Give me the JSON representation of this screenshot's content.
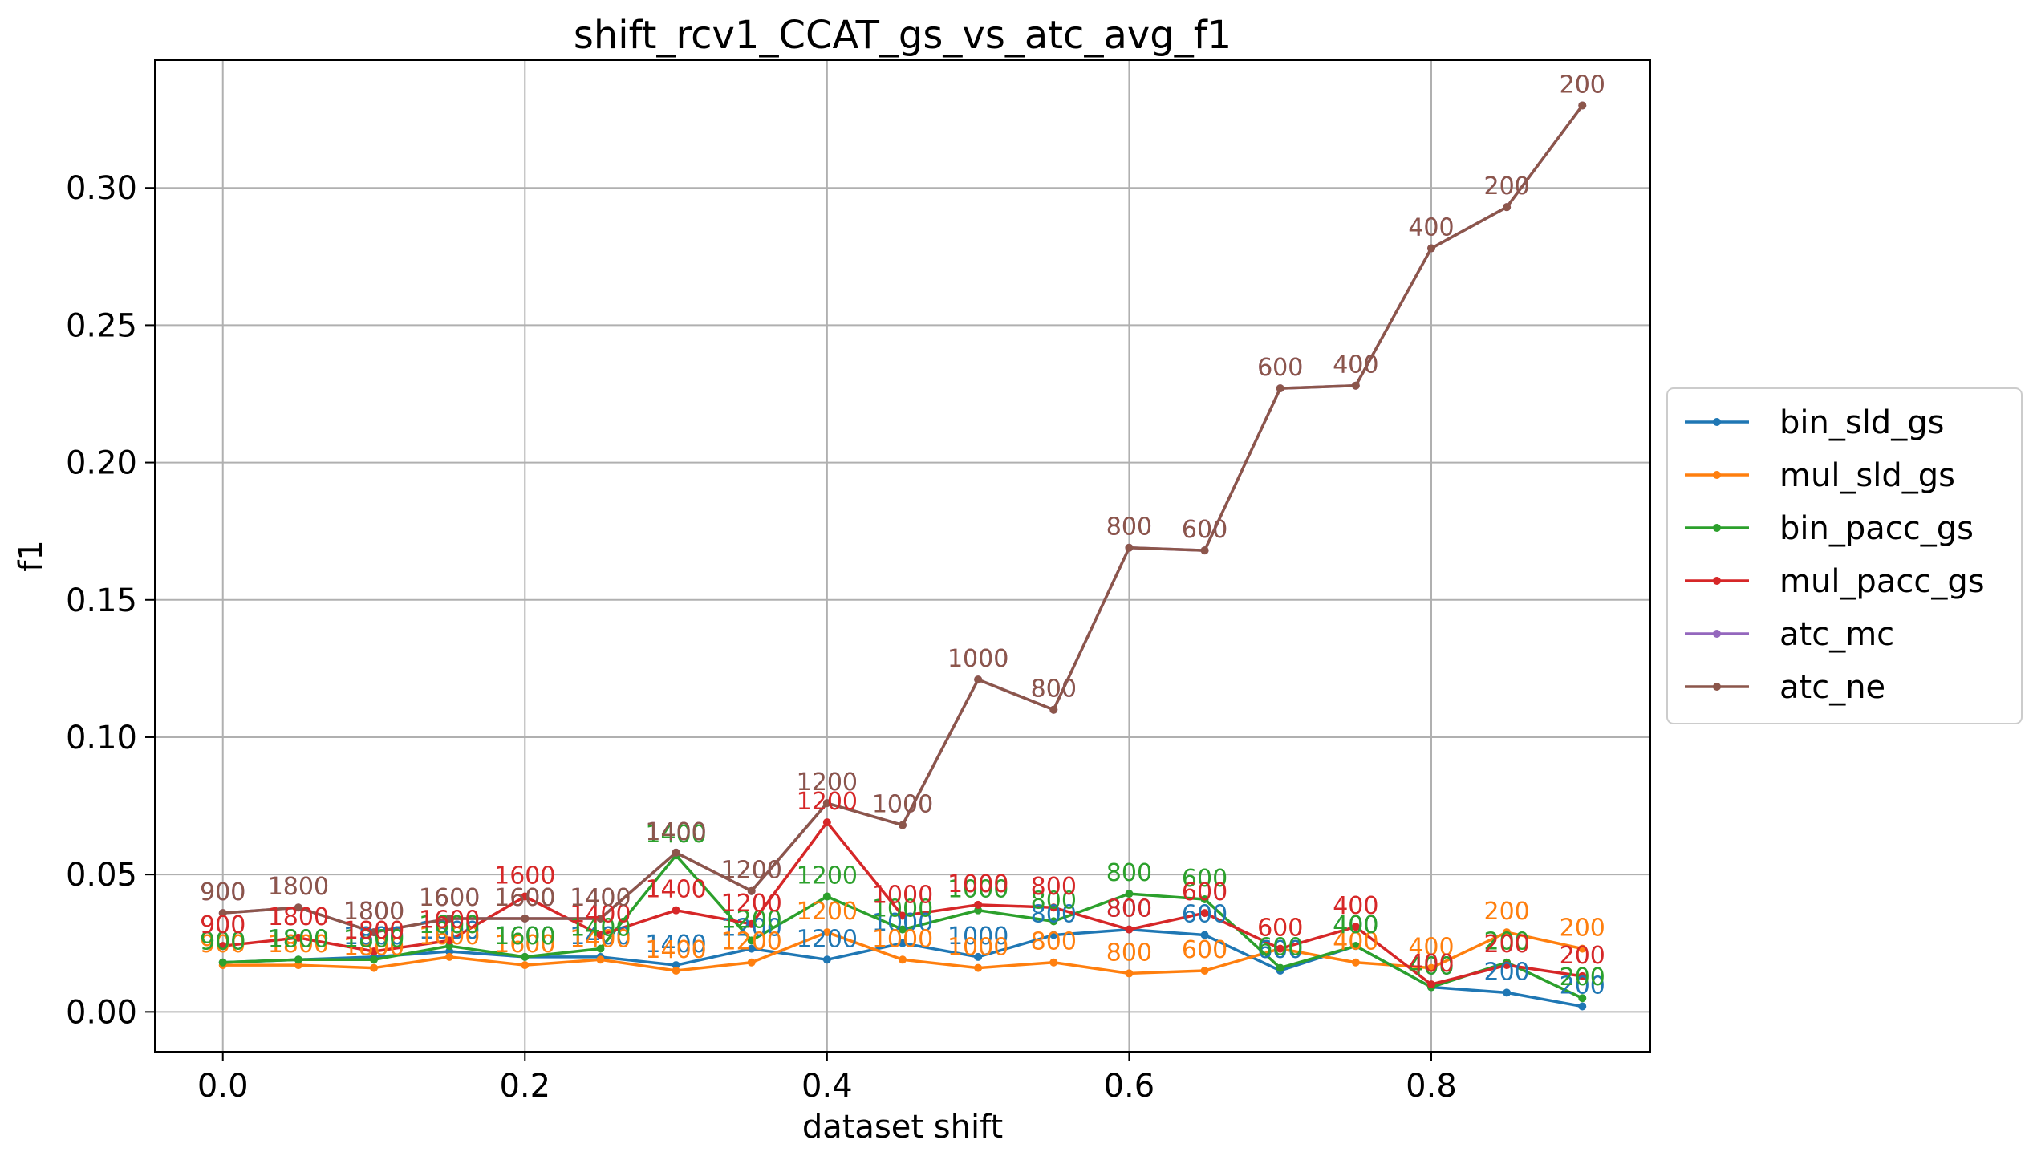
{
  "chart_data": {
    "type": "line",
    "title": "shift_rcv1_CCAT_gs_vs_atc_avg_f1",
    "xlabel": "dataset shift",
    "ylabel": "f1",
    "xlim": [
      -0.045,
      0.945
    ],
    "ylim": [
      -0.0145,
      0.3465
    ],
    "xticks": [
      0.0,
      0.2,
      0.4,
      0.6,
      0.8
    ],
    "xtick_labels": [
      "0.0",
      "0.2",
      "0.4",
      "0.6",
      "0.8"
    ],
    "yticks": [
      0.0,
      0.05,
      0.1,
      0.15,
      0.2,
      0.25,
      0.3
    ],
    "ytick_labels": [
      "0.00",
      "0.05",
      "0.10",
      "0.15",
      "0.20",
      "0.25",
      "0.30"
    ],
    "grid": true,
    "legend_position": "center-right-outside",
    "x": [
      0.0,
      0.05,
      0.1,
      0.15,
      0.2,
      0.25,
      0.3,
      0.35,
      0.4,
      0.45,
      0.5,
      0.55,
      0.6,
      0.65,
      0.7,
      0.75,
      0.8,
      0.85,
      0.9
    ],
    "point_labels": [
      "900",
      "1800",
      "1800",
      "1600",
      "1600",
      "1400",
      "1400",
      "1200",
      "1200",
      "1000",
      "1000",
      "800",
      "800",
      "600",
      "600",
      "400",
      "400",
      "200",
      "200"
    ],
    "series": [
      {
        "name": "bin_sld_gs",
        "color": "#1f77b4",
        "values": [
          0.018,
          0.019,
          0.02,
          0.022,
          0.02,
          0.02,
          0.017,
          0.023,
          0.019,
          0.025,
          0.02,
          0.028,
          0.03,
          0.028,
          0.015,
          0.024,
          0.009,
          0.007,
          0.002
        ]
      },
      {
        "name": "mul_sld_gs",
        "color": "#ff7f0e",
        "values": [
          0.017,
          0.017,
          0.016,
          0.02,
          0.017,
          0.019,
          0.015,
          0.018,
          0.029,
          0.019,
          0.016,
          0.018,
          0.014,
          0.015,
          0.023,
          0.018,
          0.016,
          0.029,
          0.023
        ]
      },
      {
        "name": "bin_pacc_gs",
        "color": "#2ca02c",
        "values": [
          0.018,
          0.019,
          0.019,
          0.024,
          0.02,
          0.023,
          0.057,
          0.026,
          0.042,
          0.03,
          0.037,
          0.033,
          0.043,
          0.041,
          0.016,
          0.024,
          0.009,
          0.018,
          0.005
        ]
      },
      {
        "name": "mul_pacc_gs",
        "color": "#d62728",
        "values": [
          0.024,
          0.027,
          0.022,
          0.026,
          0.042,
          0.028,
          0.037,
          0.032,
          0.069,
          0.035,
          0.039,
          0.038,
          0.03,
          0.036,
          0.023,
          0.031,
          0.01,
          0.017,
          0.013
        ]
      },
      {
        "name": "atc_mc",
        "color": "#9467bd",
        "values": [
          0.036,
          0.038,
          0.029,
          0.034,
          0.034,
          0.034,
          0.058,
          0.044,
          0.076,
          0.068,
          0.121,
          0.11,
          0.169,
          0.168,
          0.227,
          0.228,
          0.278,
          0.293,
          0.33
        ]
      },
      {
        "name": "atc_ne",
        "color": "#8c564b",
        "values": [
          0.036,
          0.038,
          0.029,
          0.034,
          0.034,
          0.034,
          0.058,
          0.044,
          0.076,
          0.068,
          0.121,
          0.11,
          0.169,
          0.168,
          0.227,
          0.228,
          0.278,
          0.293,
          0.33
        ]
      }
    ]
  }
}
